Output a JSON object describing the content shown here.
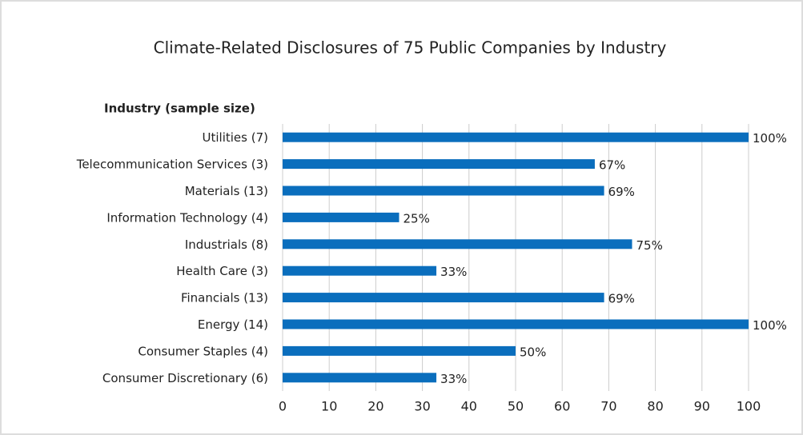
{
  "chart_data": {
    "type": "barh",
    "title": "Climate-Related Disclosures of 75 Public Companies by Industry",
    "y_label": "Industry (sample size)",
    "categories": [
      "Utilities (7)",
      "Telecommunication Services (3)",
      "Materials (13)",
      "Information Technology (4)",
      "Industrials (8)",
      "Health Care (3)",
      "Financials (13)",
      "Energy (14)",
      "Consumer Staples (4)",
      "Consumer Discretionary (6)"
    ],
    "values": [
      100,
      67,
      69,
      25,
      75,
      33,
      69,
      100,
      50,
      33
    ],
    "value_labels": [
      "100%",
      "67%",
      "69%",
      "25%",
      "75%",
      "33%",
      "69%",
      "100%",
      "50%",
      "33%"
    ],
    "color": "#0a6ebd",
    "xlim": [
      0,
      100
    ],
    "xticks": [
      0,
      10,
      20,
      30,
      40,
      50,
      60,
      70,
      80,
      90,
      100
    ],
    "grid": true
  }
}
